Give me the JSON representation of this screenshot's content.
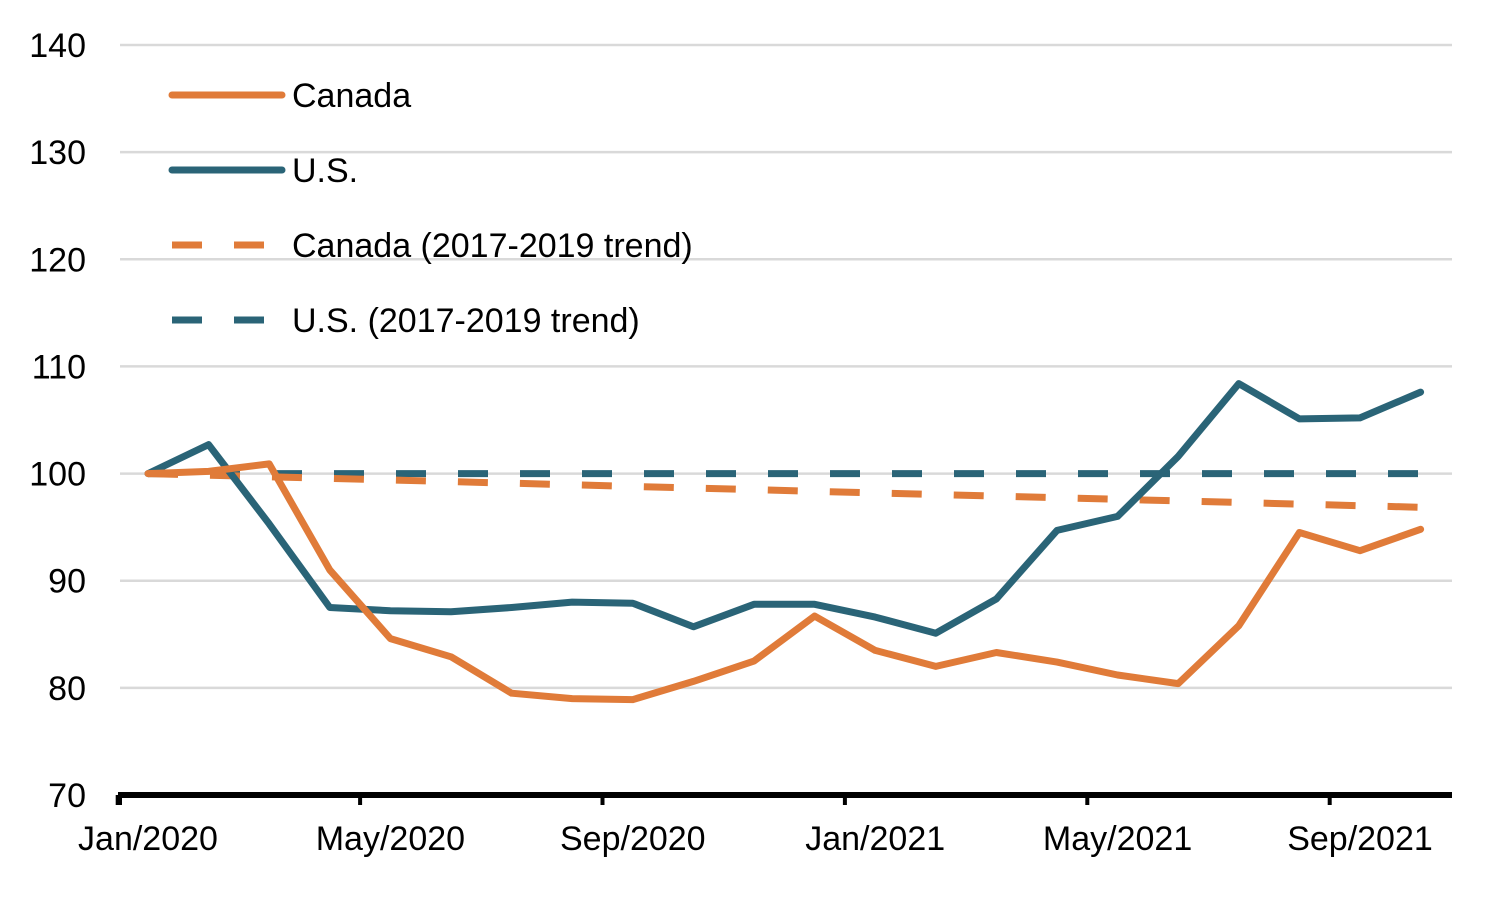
{
  "chart_data": {
    "type": "line",
    "title": "",
    "xlabel": "",
    "ylabel": "",
    "x": [
      "Jan/2020",
      "Feb/2020",
      "Mar/2020",
      "Apr/2020",
      "May/2020",
      "Jun/2020",
      "Jul/2020",
      "Aug/2020",
      "Sep/2020",
      "Oct/2020",
      "Nov/2020",
      "Dec/2020",
      "Jan/2021",
      "Feb/2021",
      "Mar/2021",
      "Apr/2021",
      "May/2021",
      "Jun/2021",
      "Jul/2021",
      "Aug/2021",
      "Sep/2021",
      "Oct/2021"
    ],
    "x_tick_labels": [
      "Jan/2020",
      "May/2020",
      "Sep/2020",
      "Jan/2021",
      "May/2021",
      "Sep/2021"
    ],
    "y_ticks": [
      70,
      80,
      90,
      100,
      110,
      120,
      130,
      140
    ],
    "ylim": [
      70,
      140
    ],
    "grid": true,
    "legend_position": "top-left",
    "series": [
      {
        "name": "Canada",
        "color": "#e07b39",
        "dash": false,
        "values": [
          100,
          100.2,
          100.9,
          91.0,
          84.6,
          82.9,
          79.5,
          79.0,
          78.9,
          80.6,
          82.5,
          86.7,
          83.5,
          82.0,
          83.3,
          82.4,
          81.2,
          80.4,
          85.8,
          94.5,
          92.8,
          94.8
        ]
      },
      {
        "name": "U.S.",
        "color": "#2a6477",
        "dash": false,
        "values": [
          100,
          102.7,
          95.3,
          87.5,
          87.2,
          87.1,
          87.5,
          88.0,
          87.9,
          85.7,
          87.8,
          87.8,
          86.6,
          85.1,
          88.3,
          94.7,
          96.0,
          101.6,
          108.4,
          105.1,
          105.2,
          107.6
        ]
      },
      {
        "name": "Canada (2017-2019 trend)",
        "color": "#e07b39",
        "dash": true,
        "values": [
          100,
          99.85,
          99.7,
          99.55,
          99.4,
          99.25,
          99.1,
          98.95,
          98.8,
          98.65,
          98.5,
          98.35,
          98.2,
          98.05,
          97.9,
          97.75,
          97.6,
          97.45,
          97.3,
          97.15,
          97.0,
          96.85
        ]
      },
      {
        "name": "U.S. (2017-2019 trend)",
        "color": "#2a6477",
        "dash": true,
        "values": [
          100,
          100,
          100,
          100,
          100,
          100,
          100,
          100,
          100,
          100,
          100,
          100,
          100,
          100,
          100,
          100,
          100,
          100,
          100,
          100,
          100,
          100
        ]
      }
    ]
  }
}
